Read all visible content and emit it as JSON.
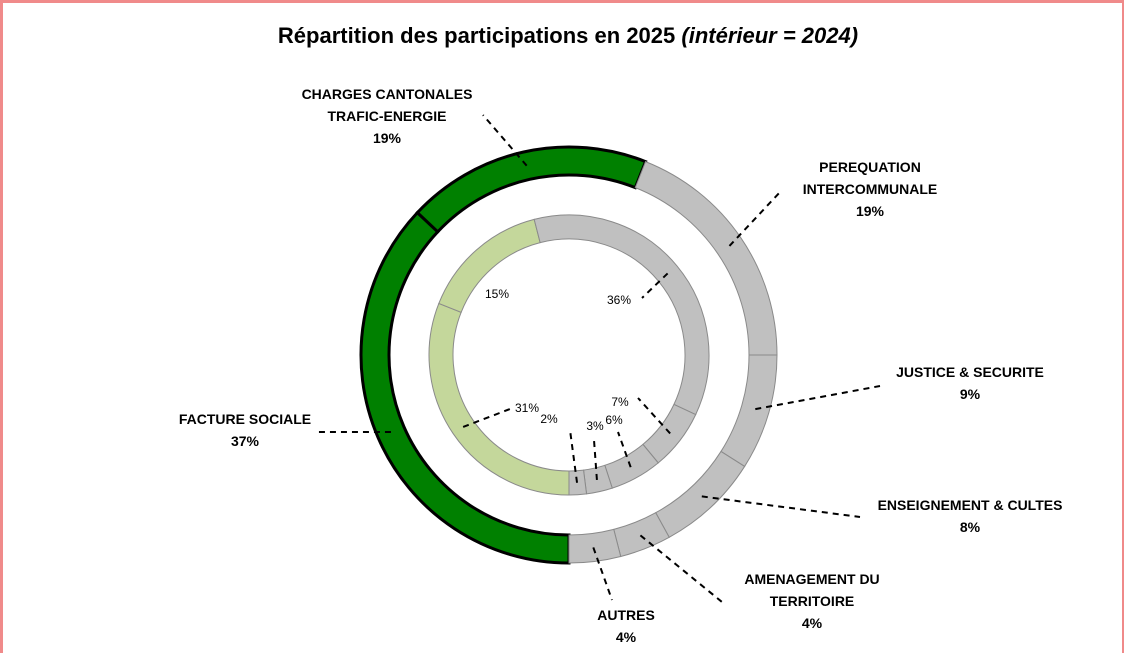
{
  "chart_data": {
    "type": "donut",
    "title": "Répartition des participations en 2025",
    "title_note": "(intérieur = 2024)",
    "rings": [
      {
        "categories": [
          [
            "FACTURE SOCIALE"
          ],
          [
            "CHARGES CANTONALES",
            "TRAFIC-ENERGIE"
          ],
          [
            "PEREQUATION",
            "INTERCOMMUNALE"
          ],
          [
            "JUSTICE & SECURITE"
          ],
          [
            "ENSEIGNEMENT & CULTES"
          ],
          [
            "AMENAGEMENT DU",
            "TERRITOIRE"
          ],
          [
            "AUTRES"
          ]
        ],
        "values": [
          37,
          19,
          19,
          9,
          8,
          4,
          4
        ],
        "value_labels": [
          "37%",
          "19%",
          "19%",
          "9%",
          "8%",
          "4%",
          "4%"
        ],
        "colors": [
          "#008000",
          "#008000",
          "#c0c0c0",
          "#c0c0c0",
          "#c0c0c0",
          "#c0c0c0",
          "#c0c0c0"
        ]
      },
      {
        "values": [
          31,
          15,
          36,
          7,
          6,
          3,
          2
        ],
        "value_labels": [
          "31%",
          "15%",
          "36%",
          "7%",
          "6%",
          "3%",
          "2%"
        ],
        "colors": [
          "#c4d79b",
          "#c4d79b",
          "#c0c0c0",
          "#c0c0c0",
          "#c0c0c0",
          "#c0c0c0",
          "#c0c0c0"
        ]
      }
    ]
  }
}
